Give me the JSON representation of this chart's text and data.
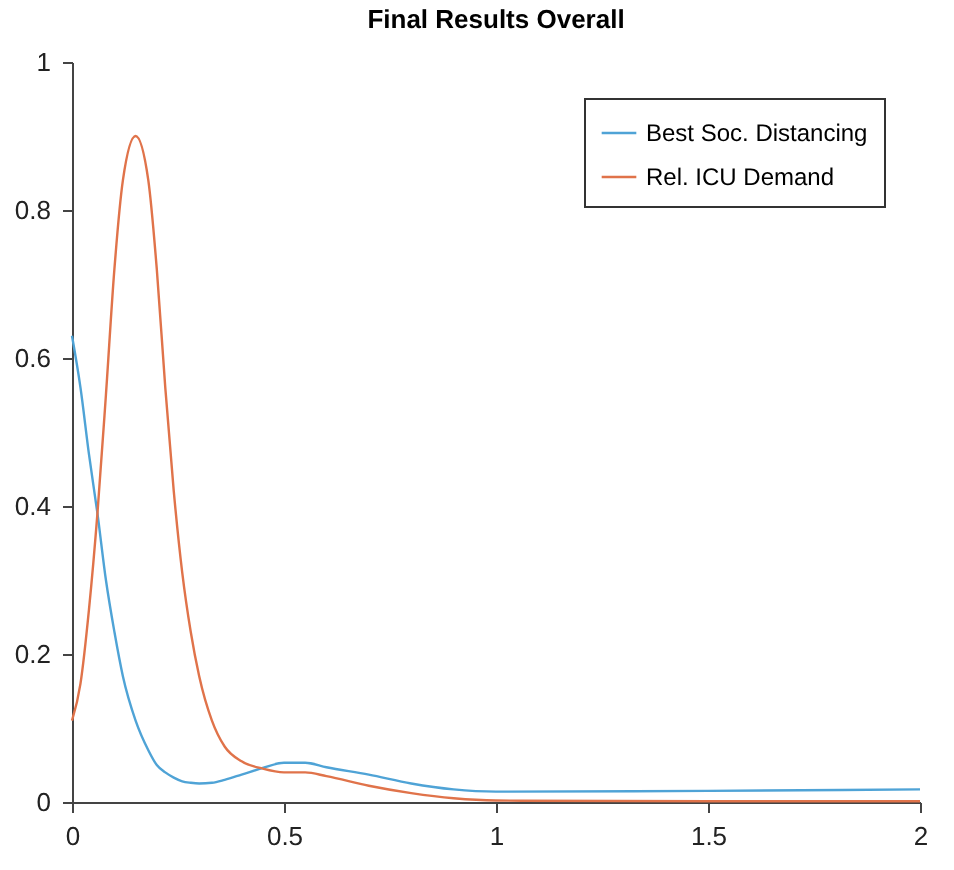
{
  "chart_data": {
    "type": "line",
    "title": "Final Results Overall",
    "xlim": [
      0,
      2
    ],
    "xticks": [
      0,
      0.5,
      1,
      1.5,
      2
    ],
    "ylim": [
      0,
      1
    ],
    "yticks": [
      0,
      0.2,
      0.4,
      0.6,
      0.8,
      1
    ],
    "grid": false,
    "legend": "top right",
    "marker": "none",
    "line_style": "solid",
    "x": [
      0,
      0.02,
      0.04,
      0.06,
      0.08,
      0.1,
      0.12,
      0.15,
      0.18,
      0.2,
      0.22,
      0.24,
      0.26,
      0.28,
      0.3,
      0.33,
      0.36,
      0.4,
      0.45,
      0.5,
      0.55,
      0.6,
      0.7,
      0.8,
      0.9,
      1,
      1.5,
      2
    ],
    "series": [
      {
        "name": "Best Soc. Distancing",
        "color": "#4fa3d6",
        "values": [
          0.63,
          0.56,
          0.47,
          0.39,
          0.3,
          0.23,
          0.17,
          0.11,
          0.07,
          0.05,
          0.04,
          0.033,
          0.028,
          0.026,
          0.025,
          0.026,
          0.03,
          0.037,
          0.046,
          0.053,
          0.053,
          0.047,
          0.037,
          0.025,
          0.017,
          0.014,
          0.015,
          0.017
        ]
      },
      {
        "name": "Rel. ICU Demand",
        "color": "#e0734a",
        "values": [
          0.11,
          0.16,
          0.26,
          0.39,
          0.55,
          0.72,
          0.84,
          0.9,
          0.84,
          0.72,
          0.56,
          0.42,
          0.31,
          0.23,
          0.17,
          0.11,
          0.075,
          0.055,
          0.045,
          0.04,
          0.04,
          0.035,
          0.022,
          0.012,
          0.005,
          0.002,
          0.001,
          0.001
        ]
      }
    ]
  }
}
